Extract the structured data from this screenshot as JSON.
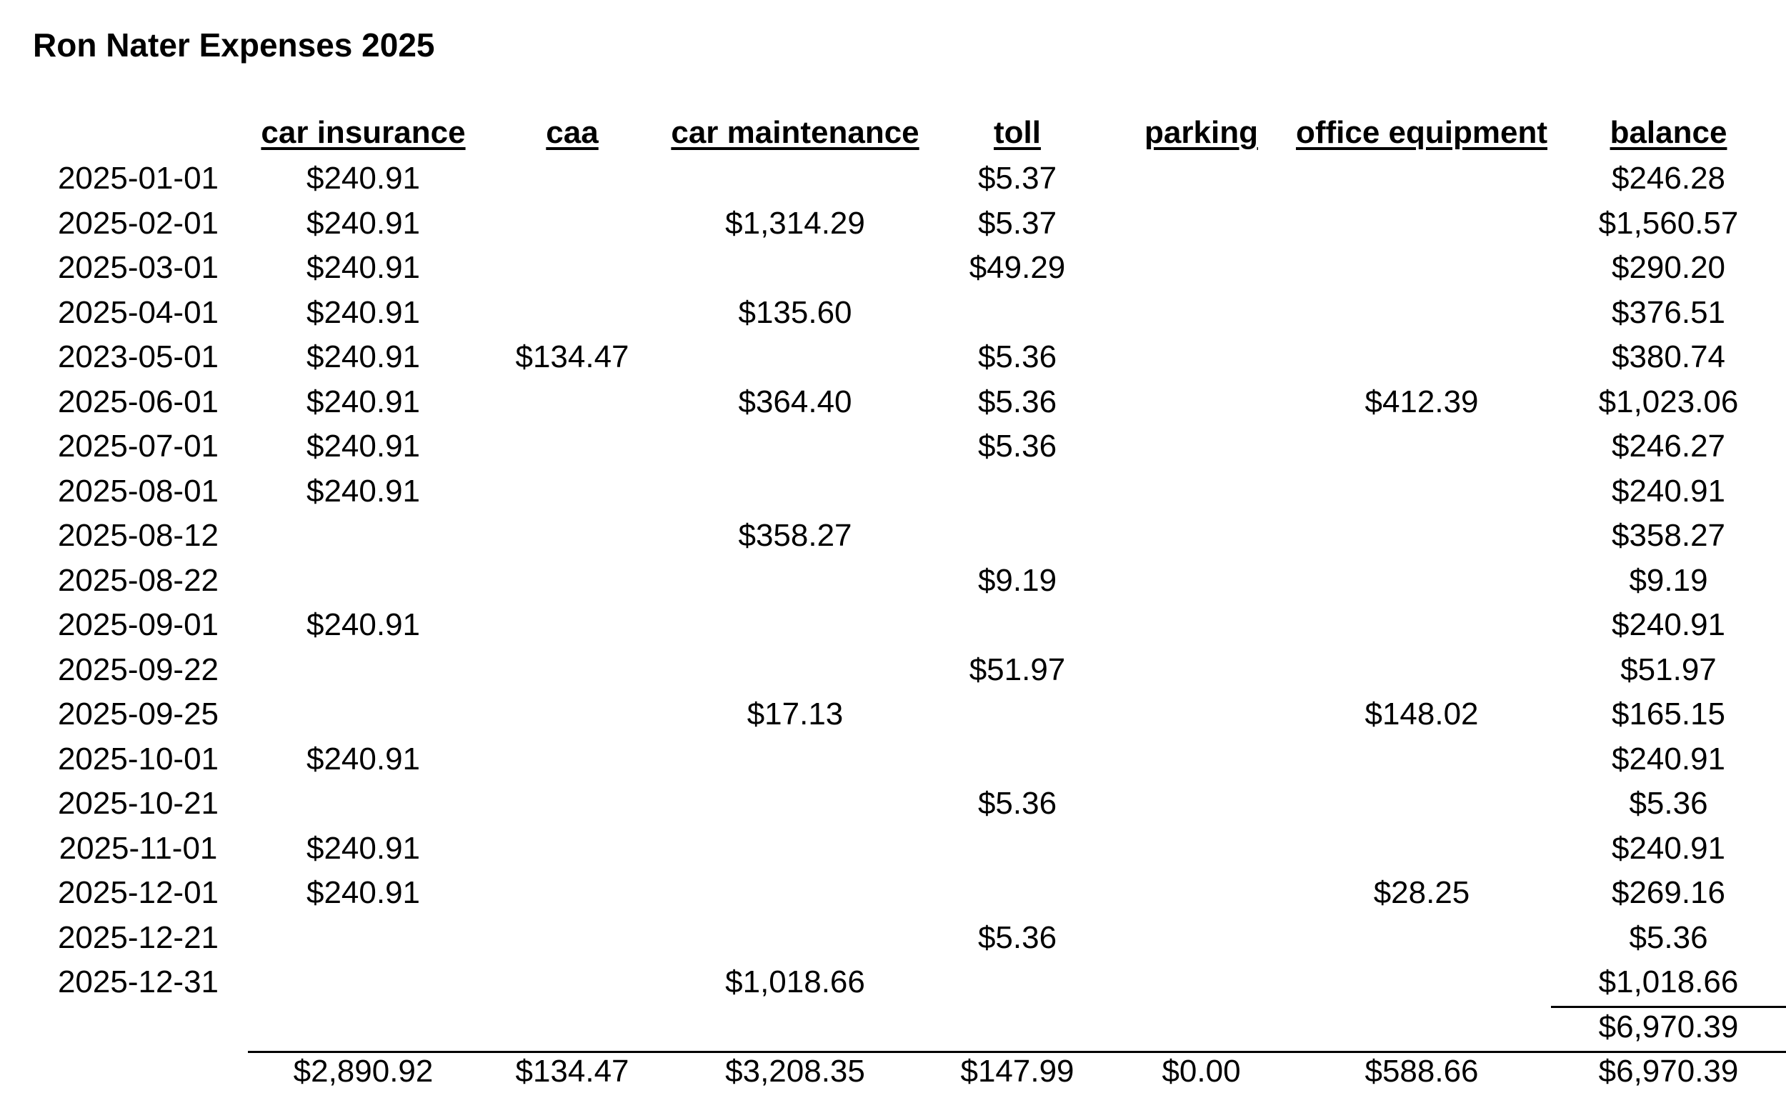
{
  "header": {
    "title": "Ron Nater Expenses 2025"
  },
  "table": {
    "columns": [
      "car insurance",
      "caa",
      "car maintenance",
      "toll",
      "parking",
      "office equipment",
      "balance"
    ],
    "rows": [
      [
        "2025-01-01",
        "$240.91",
        null,
        null,
        "$5.37",
        null,
        null,
        "$246.28"
      ],
      [
        "2025-02-01",
        "$240.91",
        null,
        "$1,314.29",
        "$5.37",
        null,
        null,
        "$1,560.57"
      ],
      [
        "2025-03-01",
        "$240.91",
        null,
        null,
        "$49.29",
        null,
        null,
        "$290.20"
      ],
      [
        "2025-04-01",
        "$240.91",
        null,
        "$135.60",
        null,
        null,
        null,
        "$376.51"
      ],
      [
        "2023-05-01",
        "$240.91",
        "$134.47",
        null,
        "$5.36",
        null,
        null,
        "$380.74"
      ],
      [
        "2025-06-01",
        "$240.91",
        null,
        "$364.40",
        "$5.36",
        null,
        "$412.39",
        "$1,023.06"
      ],
      [
        "2025-07-01",
        "$240.91",
        null,
        null,
        "$5.36",
        null,
        null,
        "$246.27"
      ],
      [
        "2025-08-01",
        "$240.91",
        null,
        null,
        null,
        null,
        null,
        "$240.91"
      ],
      [
        "2025-08-12",
        null,
        null,
        "$358.27",
        null,
        null,
        null,
        "$358.27"
      ],
      [
        "2025-08-22",
        null,
        null,
        null,
        "$9.19",
        null,
        null,
        "$9.19"
      ],
      [
        "2025-09-01",
        "$240.91",
        null,
        null,
        null,
        null,
        null,
        "$240.91"
      ],
      [
        "2025-09-22",
        null,
        null,
        null,
        "$51.97",
        null,
        null,
        "$51.97"
      ],
      [
        "2025-09-25",
        null,
        null,
        "$17.13",
        null,
        null,
        "$148.02",
        "$165.15"
      ],
      [
        "2025-10-01",
        "$240.91",
        null,
        null,
        null,
        null,
        null,
        "$240.91"
      ],
      [
        "2025-10-21",
        null,
        null,
        null,
        "$5.36",
        null,
        null,
        "$5.36"
      ],
      [
        "2025-11-01",
        "$240.91",
        null,
        null,
        null,
        null,
        null,
        "$240.91"
      ],
      [
        "2025-12-01",
        "$240.91",
        null,
        null,
        null,
        null,
        "$28.25",
        "$269.16"
      ],
      [
        "2025-12-21",
        null,
        null,
        null,
        "$5.36",
        null,
        null,
        "$5.36"
      ],
      [
        "2025-12-31",
        null,
        null,
        "$1,018.66",
        null,
        null,
        null,
        "$1,018.66"
      ]
    ],
    "subtotal": "$6,970.39",
    "totals": [
      "$2,890.92",
      "$134.47",
      "$3,208.35",
      "$147.99",
      "$0.00",
      "$588.66",
      "$6,970.39"
    ]
  }
}
